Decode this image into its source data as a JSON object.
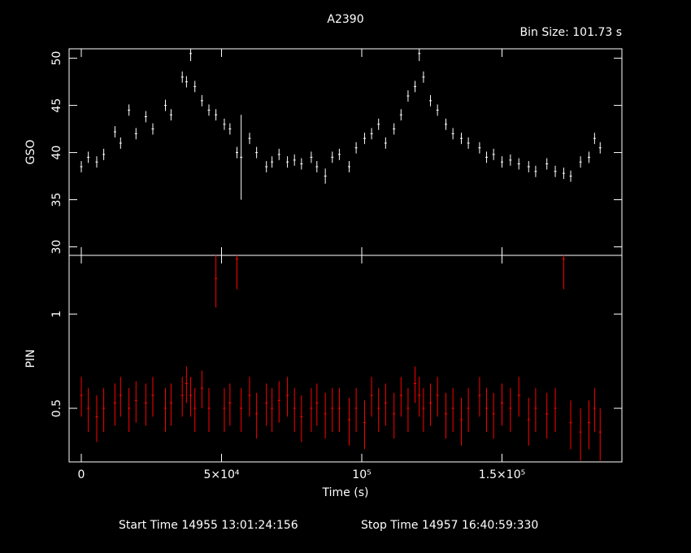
{
  "chart_data": [
    {
      "type": "scatter",
      "title": "A2390",
      "subtitle": "Bin Size: 101.73 s",
      "ylabel": "GSO",
      "color": "#ffffff",
      "xlim": [
        -4350,
        192750
      ],
      "ylim": [
        29.1,
        51.0
      ],
      "yticks": [
        30,
        35,
        40,
        45,
        50
      ],
      "x": [
        0,
        2500,
        5500,
        8000,
        12000,
        14000,
        17000,
        19500,
        23000,
        25500,
        30000,
        32000,
        36000,
        37500,
        39000,
        40500,
        43000,
        45500,
        48000,
        51000,
        53000,
        55500,
        57000,
        60000,
        62500,
        66000,
        68000,
        70500,
        73500,
        76000,
        78500,
        82000,
        84000,
        87000,
        89500,
        92000,
        95500,
        98000,
        101000,
        103500,
        106000,
        108500,
        111500,
        114000,
        116500,
        119000,
        120500,
        122000,
        124500,
        127000,
        130000,
        132500,
        135500,
        138000,
        142000,
        144500,
        147000,
        150000,
        153000,
        156000,
        159500,
        162000,
        166000,
        169000,
        172000,
        174500,
        178000,
        181000,
        183000,
        185000
      ],
      "values": [
        38.5,
        39.5,
        39.0,
        39.8,
        42.2,
        41.0,
        44.5,
        42.0,
        43.8,
        42.5,
        45.0,
        44.0,
        48.0,
        47.5,
        50.5,
        47.0,
        45.5,
        44.5,
        44.0,
        43.0,
        42.5,
        40.0,
        39.5,
        41.5,
        40.0,
        38.5,
        39.0,
        39.8,
        39.0,
        39.2,
        38.8,
        39.5,
        38.5,
        37.5,
        39.5,
        39.8,
        38.5,
        40.5,
        41.5,
        42.0,
        43.0,
        41.0,
        42.5,
        44.0,
        46.0,
        47.0,
        50.5,
        48.0,
        45.5,
        44.5,
        43.0,
        42.0,
        41.5,
        41.0,
        40.5,
        39.5,
        39.8,
        39.0,
        39.2,
        38.8,
        38.5,
        38.0,
        38.8,
        38.0,
        37.8,
        37.5,
        39.0,
        39.5,
        41.5,
        40.5
      ],
      "errors": [
        0.6,
        0.6,
        0.6,
        0.6,
        0.6,
        0.6,
        0.6,
        0.6,
        0.6,
        0.6,
        0.6,
        0.6,
        0.6,
        0.6,
        0.8,
        0.6,
        0.6,
        0.6,
        0.6,
        0.6,
        0.6,
        0.6,
        4.5,
        0.6,
        0.6,
        0.6,
        0.6,
        0.6,
        0.6,
        0.6,
        0.6,
        0.6,
        0.6,
        0.8,
        0.6,
        0.6,
        0.6,
        0.6,
        0.6,
        0.6,
        0.6,
        0.6,
        0.6,
        0.6,
        0.6,
        0.6,
        0.8,
        0.6,
        0.6,
        0.6,
        0.6,
        0.6,
        0.6,
        0.6,
        0.6,
        0.6,
        0.6,
        0.6,
        0.6,
        0.6,
        0.6,
        0.6,
        0.6,
        0.6,
        0.6,
        0.6,
        0.6,
        0.6,
        0.6,
        0.6
      ]
    },
    {
      "type": "scatter",
      "ylabel": "PIN",
      "xlabel": "Time (s)",
      "color": "#ff0000",
      "log_scale": true,
      "footer_start": "Start Time 14955 13:01:24:156",
      "footer_stop": "Stop Time 14957 16:40:59:330",
      "xlim": [
        -4350,
        192750
      ],
      "ylim": [
        0.337,
        1.54
      ],
      "yticks": [
        0.5,
        1
      ],
      "xticks": [
        0,
        {
          "value": 50000,
          "label": "5×10⁴"
        },
        {
          "value": 100000,
          "label": "10⁵"
        },
        {
          "value": 150000,
          "label": "1.5×10⁵"
        }
      ],
      "x": [
        0,
        2500,
        5500,
        8000,
        12000,
        14000,
        17000,
        19500,
        23000,
        25500,
        30000,
        32000,
        36000,
        37500,
        39000,
        40500,
        43000,
        45500,
        48000,
        51000,
        53000,
        55500,
        57000,
        60000,
        62500,
        66000,
        68000,
        70500,
        73500,
        76000,
        78500,
        82000,
        84000,
        87000,
        89500,
        92000,
        95500,
        98000,
        101000,
        103500,
        106000,
        108500,
        111500,
        114000,
        116500,
        119000,
        120500,
        122000,
        124500,
        127000,
        130000,
        132500,
        135500,
        138000,
        142000,
        144500,
        147000,
        150000,
        153000,
        156000,
        159500,
        162000,
        166000,
        169000,
        172000,
        174500,
        178000,
        181000,
        183000,
        185000
      ],
      "values": [
        0.55,
        0.5,
        0.47,
        0.5,
        0.52,
        0.55,
        0.5,
        0.53,
        0.52,
        0.55,
        0.5,
        0.52,
        0.55,
        0.6,
        0.55,
        0.5,
        0.58,
        0.5,
        1.3,
        0.5,
        0.52,
        1.5,
        0.5,
        0.55,
        0.48,
        0.52,
        0.5,
        0.53,
        0.55,
        0.5,
        0.47,
        0.5,
        0.52,
        0.48,
        0.5,
        0.5,
        0.46,
        0.5,
        0.45,
        0.55,
        0.5,
        0.52,
        0.48,
        0.55,
        0.5,
        0.6,
        0.55,
        0.5,
        0.52,
        0.55,
        0.48,
        0.5,
        0.46,
        0.5,
        0.55,
        0.5,
        0.48,
        0.52,
        0.5,
        0.55,
        0.46,
        0.5,
        0.48,
        0.5,
        1.5,
        0.45,
        0.42,
        0.45,
        0.5,
        0.42
      ],
      "errors": [
        0.08,
        0.08,
        0.08,
        0.08,
        0.08,
        0.08,
        0.08,
        0.08,
        0.08,
        0.08,
        0.08,
        0.08,
        0.08,
        0.08,
        0.08,
        0.08,
        0.08,
        0.08,
        0.25,
        0.08,
        0.08,
        0.3,
        0.08,
        0.08,
        0.08,
        0.08,
        0.08,
        0.08,
        0.08,
        0.08,
        0.08,
        0.08,
        0.08,
        0.08,
        0.08,
        0.08,
        0.08,
        0.08,
        0.08,
        0.08,
        0.08,
        0.08,
        0.08,
        0.08,
        0.08,
        0.08,
        0.08,
        0.08,
        0.08,
        0.08,
        0.08,
        0.08,
        0.08,
        0.08,
        0.08,
        0.08,
        0.08,
        0.08,
        0.08,
        0.08,
        0.08,
        0.08,
        0.08,
        0.08,
        0.3,
        0.08,
        0.08,
        0.08,
        0.08,
        0.08
      ]
    }
  ]
}
